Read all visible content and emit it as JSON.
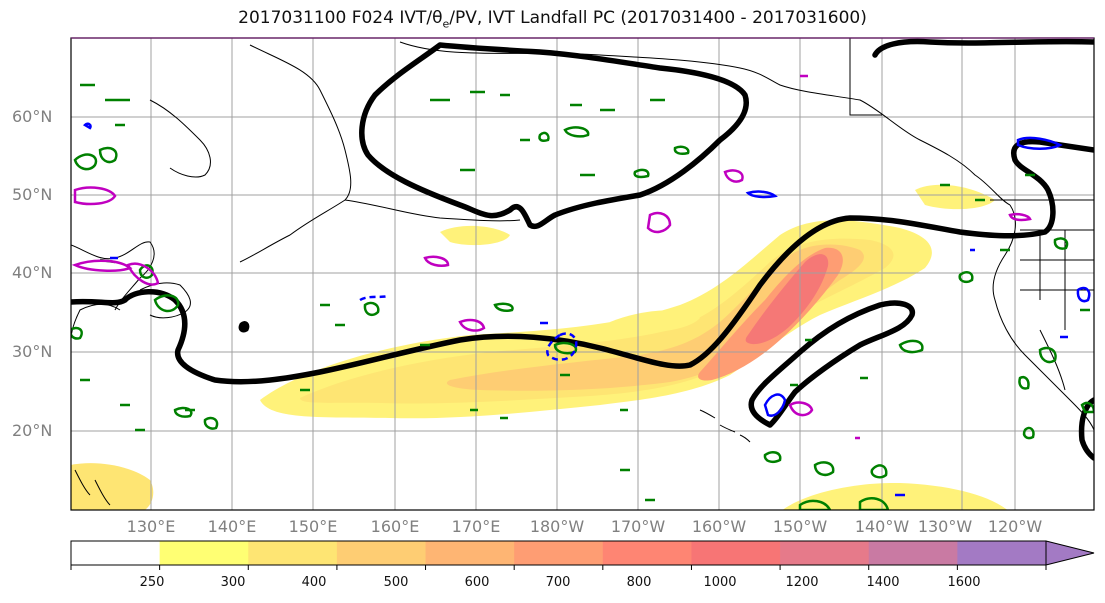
{
  "title": {
    "prefix": "2017031100 F024 IVT/",
    "theta": "θ",
    "theta_sub": "e",
    "suffix": "/PV, IVT Landfall PC (2017031400 - 2017031600)"
  },
  "lat_labels": [
    "60°N",
    "50°N",
    "40°N",
    "30°N",
    "20°N"
  ],
  "lon_labels": [
    "130°E",
    "140°E",
    "150°E",
    "160°E",
    "170°E",
    "180°W",
    "170°W",
    "160°W",
    "150°W",
    "140°W",
    "130°W",
    "120°W"
  ],
  "colorbar": {
    "levels": [
      "250",
      "300",
      "400",
      "500",
      "600",
      "700",
      "800",
      "1000",
      "1200",
      "1400",
      "1600"
    ],
    "colors": [
      "#ffffff",
      "#ffff73",
      "#fee573",
      "#fecd73",
      "#feb573",
      "#fe9d73",
      "#fe8573",
      "#f77575",
      "#e67a8a",
      "#c97aa3",
      "#a37ac4"
    ]
  },
  "colors": {
    "pc_contour": "#000000",
    "pv_positive": "#008000",
    "pv_negative": "#0000ff",
    "theta_contour": "#c000c0",
    "coastline": "#000000",
    "gridline": "#a0a0a0"
  }
}
